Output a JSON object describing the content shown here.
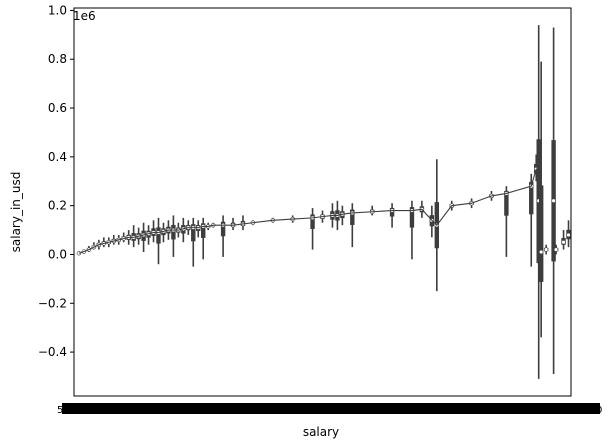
{
  "chart_data": {
    "type": "violin",
    "title": "",
    "xlabel": "salary",
    "ylabel": "salary_in_usd",
    "y_offset_label": "1e6",
    "ylim": [
      -0.58,
      1.01
    ],
    "y_ticks": [
      -0.4,
      -0.2,
      0.0,
      0.2,
      0.4,
      0.6,
      0.8,
      1.0
    ],
    "y_tick_labels": [
      "−0.4",
      "−0.2",
      "0.0",
      "0.2",
      "0.4",
      "0.6",
      "0.8",
      "1.0"
    ],
    "x_tick_labels_note": "hundreds of overlapping salary category ticks rendered as a solid band",
    "x_tick_first_label": "5",
    "x_tick_last_label": "0",
    "n_categories": 110,
    "violins": [
      {
        "x": 0.01,
        "median": 0.005,
        "min": 0.0,
        "max": 0.01
      },
      {
        "x": 0.02,
        "median": 0.012,
        "min": 0.005,
        "max": 0.02
      },
      {
        "x": 0.03,
        "median": 0.02,
        "min": 0.01,
        "max": 0.035
      },
      {
        "x": 0.04,
        "median": 0.03,
        "min": 0.02,
        "max": 0.05
      },
      {
        "x": 0.05,
        "median": 0.04,
        "min": 0.02,
        "max": 0.06
      },
      {
        "x": 0.06,
        "median": 0.045,
        "min": 0.03,
        "max": 0.07
      },
      {
        "x": 0.07,
        "median": 0.05,
        "min": 0.03,
        "max": 0.07
      },
      {
        "x": 0.08,
        "median": 0.055,
        "min": 0.04,
        "max": 0.08
      },
      {
        "x": 0.09,
        "median": 0.06,
        "min": 0.04,
        "max": 0.08
      },
      {
        "x": 0.1,
        "median": 0.065,
        "min": 0.05,
        "max": 0.09
      },
      {
        "x": 0.11,
        "median": 0.07,
        "min": 0.04,
        "max": 0.1
      },
      {
        "x": 0.12,
        "median": 0.07,
        "min": 0.03,
        "max": 0.12
      },
      {
        "x": 0.13,
        "median": 0.075,
        "min": 0.04,
        "max": 0.11
      },
      {
        "x": 0.14,
        "median": 0.08,
        "min": 0.01,
        "max": 0.13
      },
      {
        "x": 0.15,
        "median": 0.085,
        "min": 0.04,
        "max": 0.12
      },
      {
        "x": 0.16,
        "median": 0.09,
        "min": 0.05,
        "max": 0.14
      },
      {
        "x": 0.17,
        "median": 0.09,
        "min": -0.04,
        "max": 0.15
      },
      {
        "x": 0.18,
        "median": 0.095,
        "min": 0.05,
        "max": 0.13
      },
      {
        "x": 0.19,
        "median": 0.1,
        "min": 0.06,
        "max": 0.14
      },
      {
        "x": 0.2,
        "median": 0.1,
        "min": -0.01,
        "max": 0.16
      },
      {
        "x": 0.21,
        "median": 0.1,
        "min": 0.07,
        "max": 0.13
      },
      {
        "x": 0.22,
        "median": 0.105,
        "min": 0.05,
        "max": 0.15
      },
      {
        "x": 0.23,
        "median": 0.11,
        "min": 0.08,
        "max": 0.14
      },
      {
        "x": 0.24,
        "median": 0.11,
        "min": -0.05,
        "max": 0.15
      },
      {
        "x": 0.25,
        "median": 0.11,
        "min": 0.07,
        "max": 0.14
      },
      {
        "x": 0.26,
        "median": 0.115,
        "min": -0.02,
        "max": 0.15
      },
      {
        "x": 0.27,
        "median": 0.115,
        "min": 0.1,
        "max": 0.13
      },
      {
        "x": 0.28,
        "median": 0.12,
        "min": 0.11,
        "max": 0.13
      },
      {
        "x": 0.3,
        "median": 0.12,
        "min": -0.01,
        "max": 0.16
      },
      {
        "x": 0.32,
        "median": 0.12,
        "min": 0.1,
        "max": 0.15
      },
      {
        "x": 0.34,
        "median": 0.125,
        "min": 0.1,
        "max": 0.16
      },
      {
        "x": 0.36,
        "median": 0.13,
        "min": 0.12,
        "max": 0.14
      },
      {
        "x": 0.4,
        "median": 0.14,
        "min": 0.13,
        "max": 0.15
      },
      {
        "x": 0.44,
        "median": 0.145,
        "min": 0.13,
        "max": 0.16
      },
      {
        "x": 0.48,
        "median": 0.15,
        "min": 0.02,
        "max": 0.19
      },
      {
        "x": 0.5,
        "median": 0.155,
        "min": 0.13,
        "max": 0.18
      },
      {
        "x": 0.52,
        "median": 0.16,
        "min": 0.11,
        "max": 0.21
      },
      {
        "x": 0.53,
        "median": 0.16,
        "min": 0.1,
        "max": 0.22
      },
      {
        "x": 0.54,
        "median": 0.165,
        "min": 0.12,
        "max": 0.2
      },
      {
        "x": 0.56,
        "median": 0.17,
        "min": 0.03,
        "max": 0.21
      },
      {
        "x": 0.6,
        "median": 0.175,
        "min": 0.16,
        "max": 0.2
      },
      {
        "x": 0.64,
        "median": 0.18,
        "min": 0.11,
        "max": 0.21
      },
      {
        "x": 0.68,
        "median": 0.18,
        "min": -0.02,
        "max": 0.22
      },
      {
        "x": 0.7,
        "median": 0.185,
        "min": 0.15,
        "max": 0.22
      },
      {
        "x": 0.72,
        "median": 0.14,
        "min": 0.07,
        "max": 0.2
      },
      {
        "x": 0.73,
        "median": 0.12,
        "min": -0.15,
        "max": 0.39
      },
      {
        "x": 0.76,
        "median": 0.2,
        "min": 0.18,
        "max": 0.22
      },
      {
        "x": 0.8,
        "median": 0.21,
        "min": 0.19,
        "max": 0.23
      },
      {
        "x": 0.84,
        "median": 0.24,
        "min": 0.22,
        "max": 0.26
      },
      {
        "x": 0.87,
        "median": 0.25,
        "min": -0.01,
        "max": 0.28
      },
      {
        "x": 0.92,
        "median": 0.28,
        "min": -0.05,
        "max": 0.33
      },
      {
        "x": 0.93,
        "median": 0.35,
        "min": 0.3,
        "max": 0.41
      },
      {
        "x": 0.935,
        "median": 0.22,
        "min": -0.51,
        "max": 0.94
      },
      {
        "x": 0.94,
        "median": 0.01,
        "min": -0.34,
        "max": 0.79
      },
      {
        "x": 0.95,
        "median": 0.02,
        "min": 0.0,
        "max": 0.04
      },
      {
        "x": 0.965,
        "median": 0.22,
        "min": -0.49,
        "max": 0.93
      },
      {
        "x": 0.97,
        "median": 0.02,
        "min": 0.0,
        "max": 0.04
      },
      {
        "x": 0.985,
        "median": 0.05,
        "min": 0.02,
        "max": 0.1
      },
      {
        "x": 0.995,
        "median": 0.08,
        "min": 0.03,
        "max": 0.14
      }
    ]
  }
}
